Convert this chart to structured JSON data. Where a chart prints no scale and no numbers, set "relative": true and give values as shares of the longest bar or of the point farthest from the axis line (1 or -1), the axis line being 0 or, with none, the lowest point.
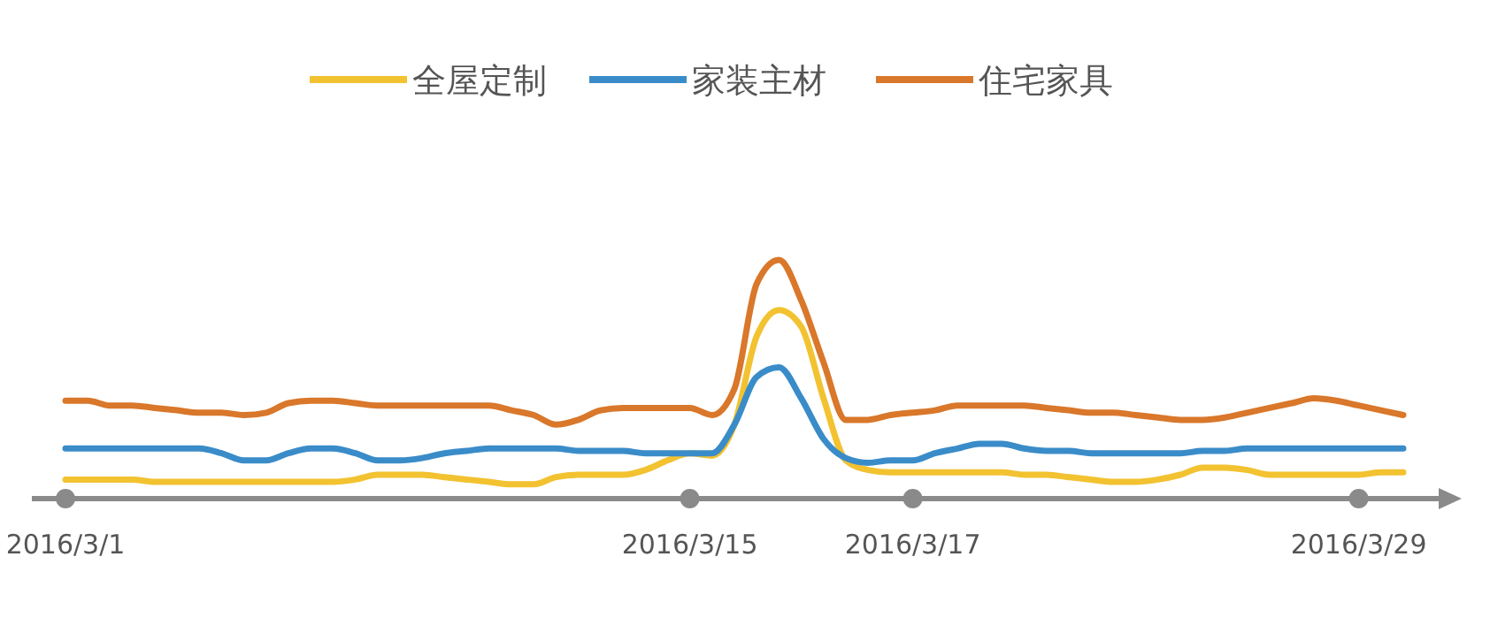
{
  "chart_data": {
    "type": "line",
    "relative": true,
    "legend": "top",
    "marker": "none",
    "line_style": "solid",
    "categories": [
      "2016/3/1",
      null,
      null,
      null,
      null,
      null,
      null,
      null,
      null,
      null,
      null,
      null,
      null,
      null,
      null,
      null,
      null,
      null,
      null,
      null,
      null,
      null,
      null,
      null,
      null,
      null,
      null,
      null,
      "2016/3/15",
      null,
      null,
      null,
      null,
      null,
      null,
      null,
      null,
      null,
      "2016/3/17",
      null,
      null,
      null,
      null,
      null,
      null,
      null,
      null,
      null,
      null,
      null,
      null,
      null,
      null,
      null,
      null,
      null,
      null,
      null,
      "2016/3/29",
      null,
      null
    ],
    "series": [
      {
        "name": "全屋定制",
        "color": "#f2c230",
        "values": [
          0.08,
          0.08,
          0.08,
          0.08,
          0.07,
          0.07,
          0.07,
          0.07,
          0.07,
          0.07,
          0.07,
          0.07,
          0.07,
          0.08,
          0.1,
          0.1,
          0.1,
          0.09,
          0.08,
          0.07,
          0.06,
          0.06,
          0.09,
          0.1,
          0.1,
          0.1,
          0.12,
          0.16,
          0.19,
          0.18,
          0.31,
          0.68,
          0.79,
          0.72,
          0.42,
          0.16,
          0.12,
          0.11,
          0.11,
          0.11,
          0.11,
          0.11,
          0.11,
          0.1,
          0.1,
          0.09,
          0.08,
          0.07,
          0.07,
          0.08,
          0.1,
          0.13,
          0.13,
          0.12,
          0.1,
          0.1,
          0.1,
          0.1,
          0.1,
          0.11,
          0.11
        ]
      },
      {
        "name": "家装主材",
        "color": "#3a8cc9",
        "values": [
          0.21,
          0.21,
          0.21,
          0.21,
          0.21,
          0.21,
          0.21,
          0.19,
          0.16,
          0.16,
          0.19,
          0.21,
          0.21,
          0.19,
          0.16,
          0.16,
          0.17,
          0.19,
          0.2,
          0.21,
          0.21,
          0.21,
          0.21,
          0.2,
          0.2,
          0.2,
          0.19,
          0.19,
          0.19,
          0.19,
          0.31,
          0.51,
          0.55,
          0.42,
          0.25,
          0.17,
          0.15,
          0.16,
          0.16,
          0.19,
          0.21,
          0.23,
          0.23,
          0.21,
          0.2,
          0.2,
          0.19,
          0.19,
          0.19,
          0.19,
          0.19,
          0.2,
          0.2,
          0.21,
          0.21,
          0.21,
          0.21,
          0.21,
          0.21,
          0.21,
          0.21
        ]
      },
      {
        "name": "住宅家具",
        "color": "#d9772a",
        "values": [
          0.41,
          0.41,
          0.39,
          0.39,
          0.38,
          0.37,
          0.36,
          0.36,
          0.35,
          0.36,
          0.4,
          0.41,
          0.41,
          0.4,
          0.39,
          0.39,
          0.39,
          0.39,
          0.39,
          0.39,
          0.37,
          0.35,
          0.31,
          0.33,
          0.37,
          0.38,
          0.38,
          0.38,
          0.38,
          0.35,
          0.46,
          0.9,
          1,
          0.83,
          0.57,
          0.33,
          0.33,
          0.35,
          0.36,
          0.37,
          0.39,
          0.39,
          0.39,
          0.39,
          0.38,
          0.37,
          0.36,
          0.36,
          0.35,
          0.34,
          0.33,
          0.33,
          0.34,
          0.36,
          0.38,
          0.4,
          0.42,
          0.41,
          0.39,
          0.37,
          0.35
        ]
      }
    ]
  }
}
